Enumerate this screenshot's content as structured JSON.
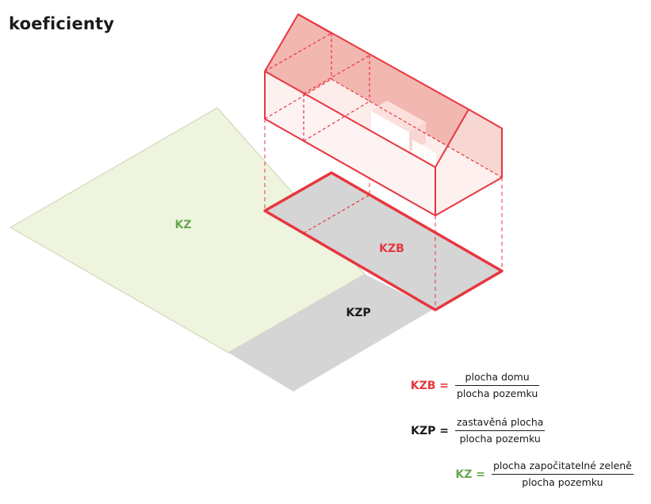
{
  "title": "koeficienty",
  "labels": {
    "kz": "KZ",
    "kzb": "KZB",
    "kzp": "KZP"
  },
  "colors": {
    "red": "#e8363f",
    "green": "#6aa84f",
    "black": "#1a1a1a",
    "green_fill": "#eef4de",
    "grey_fill": "#d5d5d5",
    "roof_fill": "#f2b7b0"
  },
  "formulas": [
    {
      "name": "KZB =",
      "numerator": "plocha domu",
      "denominator": "plocha pozemku",
      "color": "#e8363f"
    },
    {
      "name": "KZP =",
      "numerator": "zastavěná plocha",
      "denominator": "plocha pozemku",
      "color": "#1a1a1a"
    },
    {
      "name": "KZ =",
      "numerator": "plocha započitatelné zeleně",
      "denominator": "plocha pozemku",
      "color": "#6aa84f"
    }
  ]
}
